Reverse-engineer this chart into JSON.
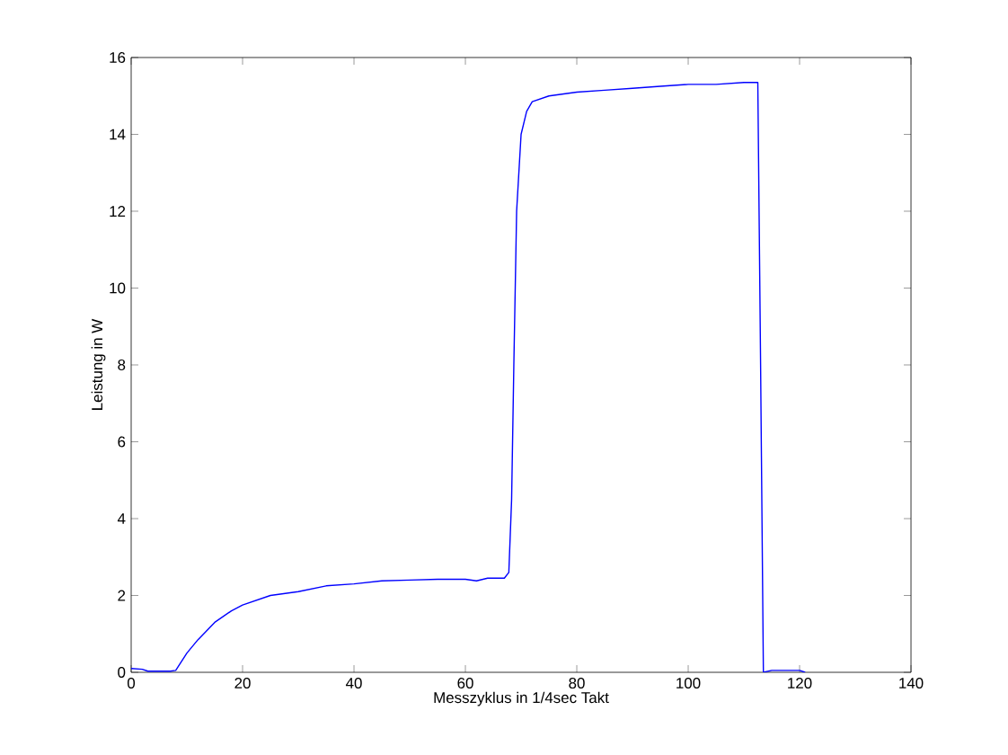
{
  "chart_data": {
    "type": "line",
    "xlabel": "Messzyklus in 1/4sec Takt",
    "ylabel": "Leistung in W",
    "xlim": [
      0,
      140
    ],
    "ylim": [
      0,
      16
    ],
    "xticks": [
      0,
      20,
      40,
      60,
      80,
      100,
      120,
      140
    ],
    "yticks": [
      0,
      2,
      4,
      6,
      8,
      10,
      12,
      14,
      16
    ],
    "grid": false,
    "series": [
      {
        "color": "#0000ff",
        "x": [
          0,
          2,
          3,
          5,
          7,
          8,
          10,
          12,
          15,
          18,
          20,
          25,
          30,
          35,
          40,
          45,
          50,
          55,
          60,
          62,
          64,
          67,
          67.8,
          68.3,
          68.7,
          69.2,
          70,
          71,
          72,
          75,
          80,
          85,
          90,
          95,
          100,
          105,
          110,
          112.5,
          113,
          113.5,
          115,
          118,
          120,
          121
        ],
        "values": [
          0.1,
          0.08,
          0.03,
          0.03,
          0.03,
          0.05,
          0.5,
          0.85,
          1.3,
          1.6,
          1.75,
          2.0,
          2.1,
          2.25,
          2.3,
          2.38,
          2.4,
          2.42,
          2.42,
          2.38,
          2.45,
          2.45,
          2.6,
          4.5,
          8,
          12,
          14.0,
          14.6,
          14.85,
          15.0,
          15.1,
          15.15,
          15.2,
          15.25,
          15.3,
          15.3,
          15.35,
          15.35,
          8,
          0,
          0.05,
          0.05,
          0.05,
          0
        ]
      }
    ]
  }
}
